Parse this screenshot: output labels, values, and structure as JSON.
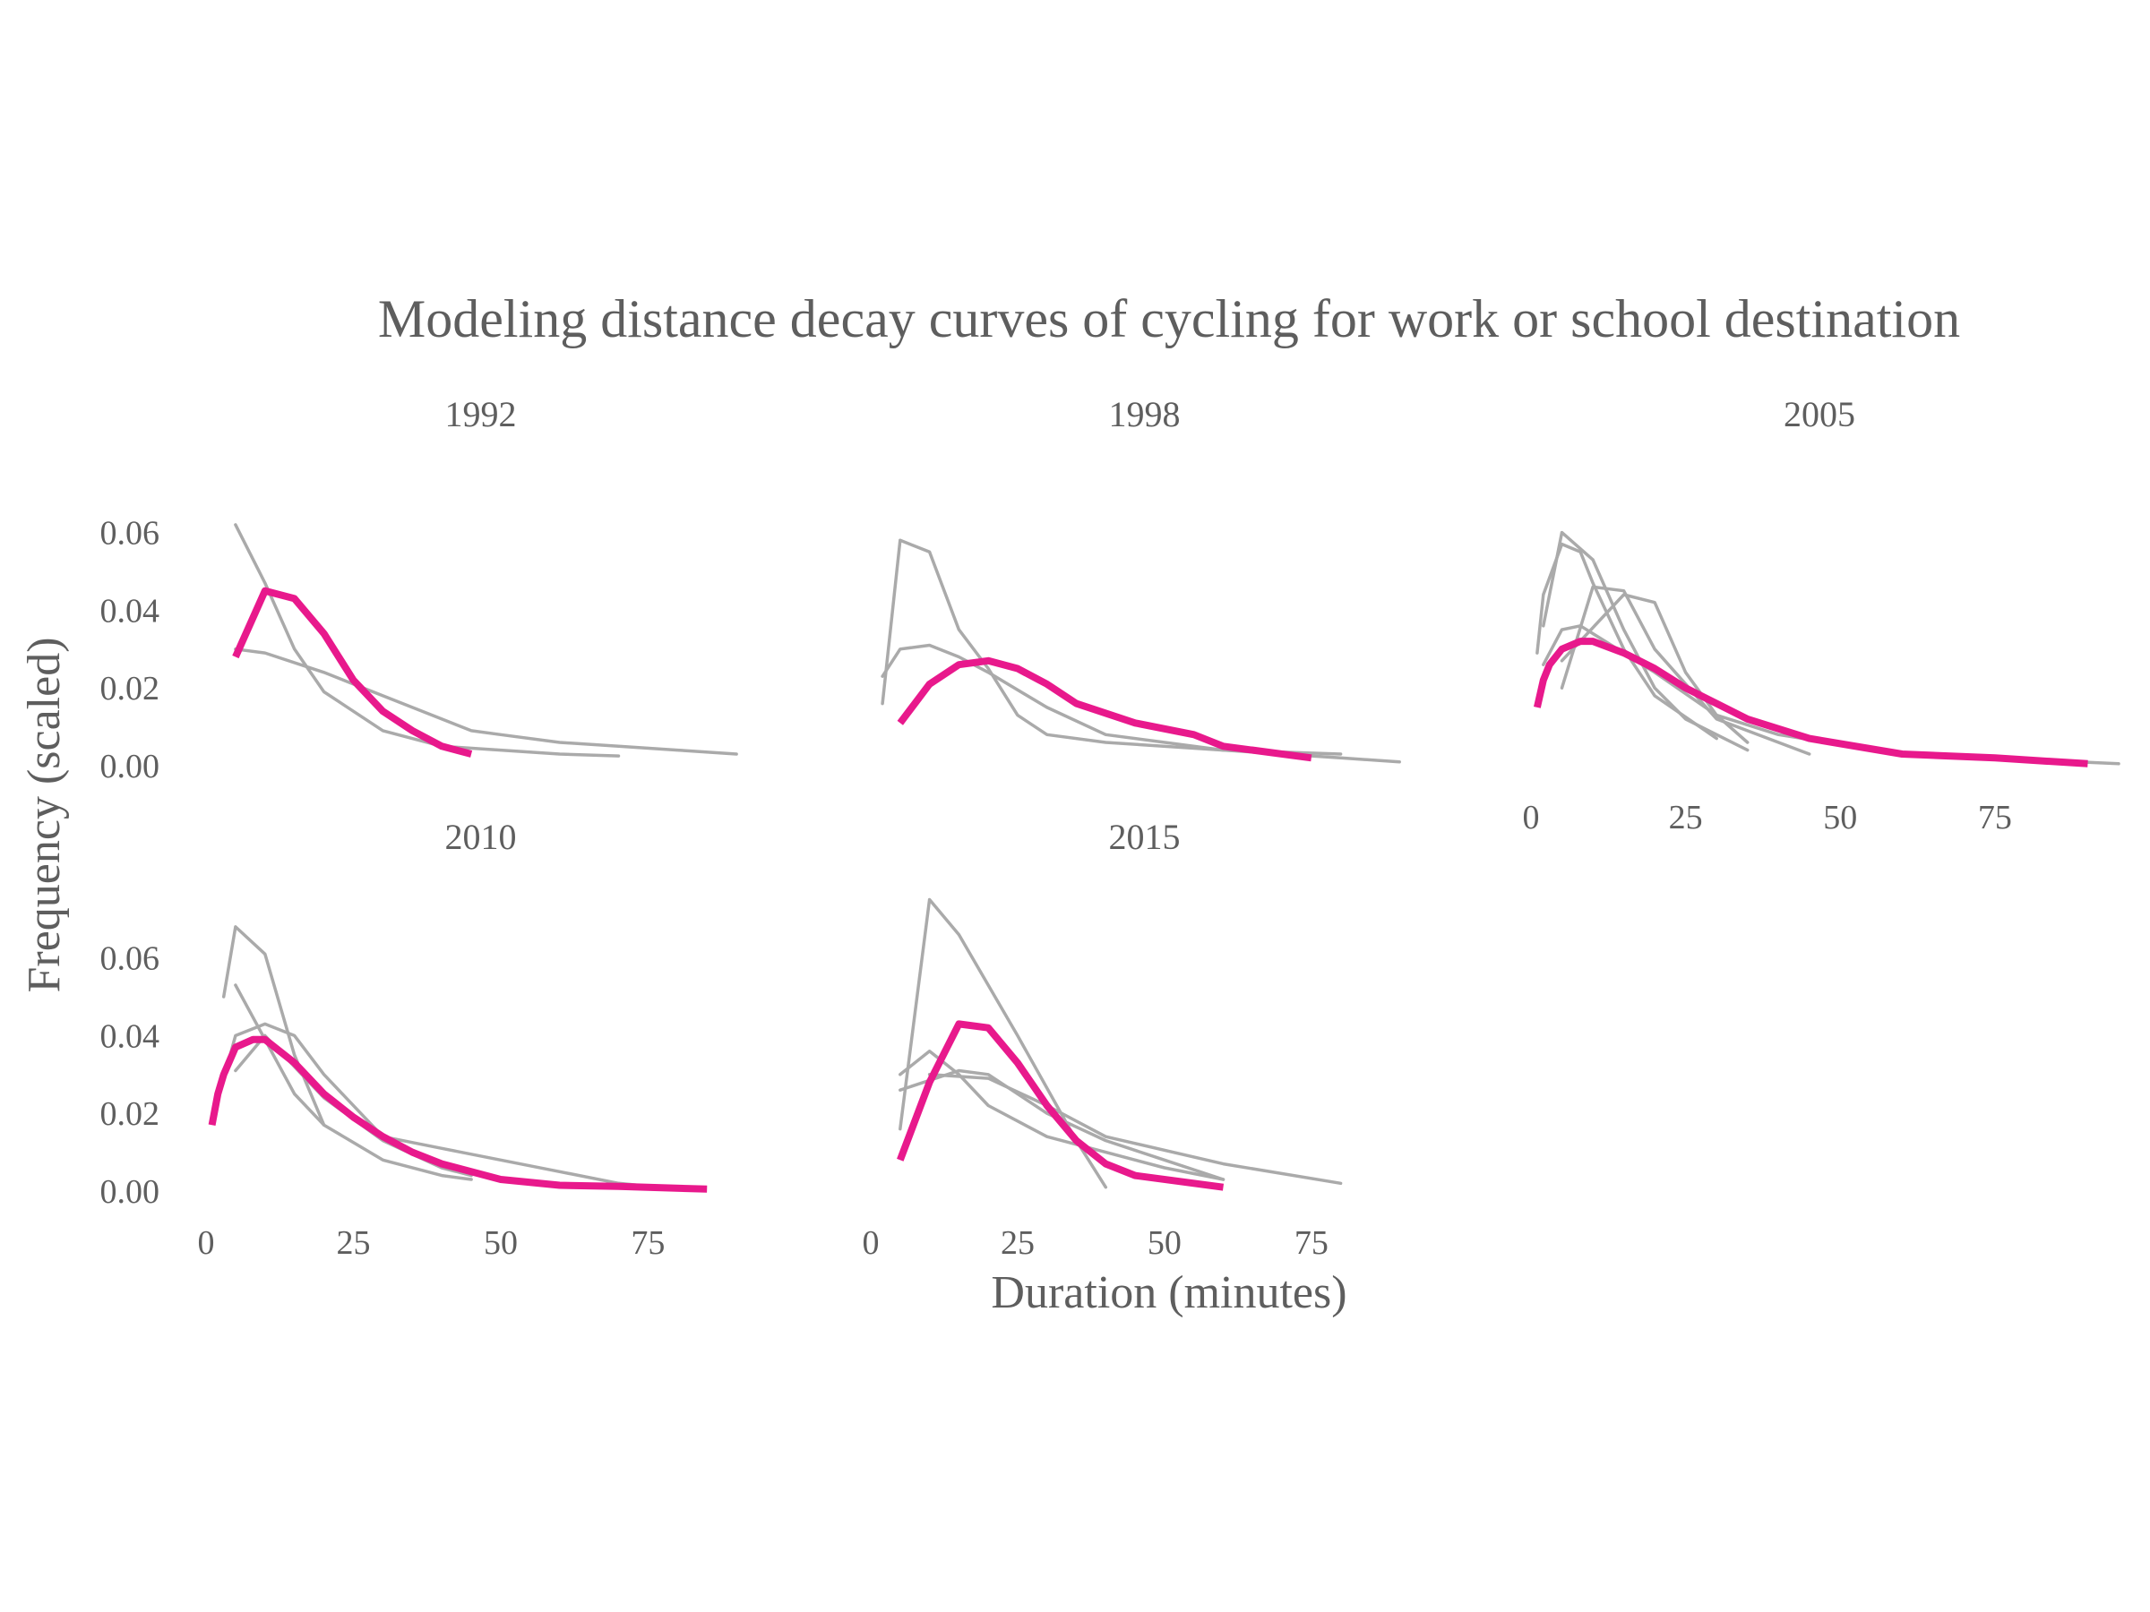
{
  "chart_data": {
    "type": "line",
    "title": "Modeling distance decay curves of cycling for work or school destination",
    "xlabel": "Duration (minutes)",
    "ylabel": "Frequency (scaled)",
    "xlim": [
      0,
      95
    ],
    "ylim": [
      0,
      0.065
    ],
    "x_ticks": [
      0,
      25,
      50,
      75
    ],
    "x_tick_labels": [
      "0",
      "25",
      "50",
      "75"
    ],
    "y_ticks": [
      0,
      0.02,
      0.04,
      0.06
    ],
    "y_tick_labels": [
      "0.00",
      "0.02",
      "0.04",
      "0.06"
    ],
    "grid": false,
    "legend": "none",
    "colors": {
      "model": "#e8198c",
      "observed": "#aaaaaa",
      "text": "#5e5e5e"
    },
    "panels": [
      {
        "label": "1992",
        "observed": [
          [
            [
              5,
              0.062
            ],
            [
              10,
              0.047
            ],
            [
              15,
              0.03
            ],
            [
              20,
              0.019
            ],
            [
              30,
              0.009
            ],
            [
              40,
              0.005
            ],
            [
              50,
              0.004
            ],
            [
              60,
              0.003
            ],
            [
              70,
              0.0025
            ]
          ],
          [
            [
              5,
              0.03
            ],
            [
              10,
              0.029
            ],
            [
              20,
              0.024
            ],
            [
              30,
              0.018
            ],
            [
              40,
              0.012
            ],
            [
              45,
              0.009
            ],
            [
              50,
              0.008
            ],
            [
              60,
              0.006
            ],
            [
              70,
              0.005
            ],
            [
              80,
              0.004
            ],
            [
              90,
              0.003
            ]
          ]
        ],
        "model": [
          [
            5,
            0.028
          ],
          [
            10,
            0.045
          ],
          [
            15,
            0.043
          ],
          [
            20,
            0.034
          ],
          [
            25,
            0.022
          ],
          [
            30,
            0.014
          ],
          [
            35,
            0.009
          ],
          [
            40,
            0.005
          ],
          [
            45,
            0.003
          ]
        ]
      },
      {
        "label": "1998",
        "observed": [
          [
            [
              2,
              0.016
            ],
            [
              5,
              0.058
            ],
            [
              10,
              0.055
            ],
            [
              15,
              0.035
            ],
            [
              20,
              0.025
            ],
            [
              25,
              0.013
            ],
            [
              30,
              0.008
            ],
            [
              40,
              0.006
            ],
            [
              60,
              0.004
            ],
            [
              80,
              0.003
            ]
          ],
          [
            [
              2,
              0.023
            ],
            [
              5,
              0.03
            ],
            [
              10,
              0.031
            ],
            [
              15,
              0.028
            ],
            [
              20,
              0.024
            ],
            [
              30,
              0.015
            ],
            [
              40,
              0.008
            ],
            [
              60,
              0.004
            ],
            [
              80,
              0.002
            ],
            [
              90,
              0.001
            ]
          ]
        ],
        "model": [
          [
            5,
            0.011
          ],
          [
            10,
            0.021
          ],
          [
            15,
            0.026
          ],
          [
            20,
            0.027
          ],
          [
            25,
            0.025
          ],
          [
            30,
            0.021
          ],
          [
            35,
            0.016
          ],
          [
            45,
            0.011
          ],
          [
            55,
            0.008
          ],
          [
            60,
            0.005
          ],
          [
            75,
            0.002
          ]
        ]
      },
      {
        "label": "2005",
        "observed": [
          [
            [
              1,
              0.029
            ],
            [
              2,
              0.044
            ],
            [
              5,
              0.057
            ],
            [
              8,
              0.055
            ],
            [
              10,
              0.047
            ],
            [
              15,
              0.03
            ],
            [
              20,
              0.018
            ],
            [
              30,
              0.007
            ]
          ],
          [
            [
              2,
              0.036
            ],
            [
              5,
              0.06
            ],
            [
              10,
              0.053
            ],
            [
              15,
              0.035
            ],
            [
              20,
              0.02
            ],
            [
              25,
              0.012
            ],
            [
              35,
              0.004
            ]
          ],
          [
            [
              5,
              0.02
            ],
            [
              10,
              0.046
            ],
            [
              15,
              0.045
            ],
            [
              20,
              0.03
            ],
            [
              30,
              0.012
            ],
            [
              45,
              0.003
            ]
          ],
          [
            [
              5,
              0.027
            ],
            [
              15,
              0.044
            ],
            [
              20,
              0.042
            ],
            [
              25,
              0.024
            ],
            [
              30,
              0.013
            ],
            [
              35,
              0.006
            ]
          ],
          [
            [
              2,
              0.026
            ],
            [
              5,
              0.035
            ],
            [
              8,
              0.036
            ],
            [
              12,
              0.032
            ],
            [
              20,
              0.024
            ],
            [
              30,
              0.013
            ],
            [
              40,
              0.008
            ],
            [
              60,
              0.003
            ],
            [
              95,
              0.0005
            ]
          ]
        ],
        "model": [
          [
            1,
            0.015
          ],
          [
            2,
            0.022
          ],
          [
            3,
            0.026
          ],
          [
            5,
            0.03
          ],
          [
            8,
            0.032
          ],
          [
            10,
            0.032
          ],
          [
            15,
            0.029
          ],
          [
            20,
            0.025
          ],
          [
            25,
            0.02
          ],
          [
            30,
            0.016
          ],
          [
            35,
            0.012
          ],
          [
            45,
            0.007
          ],
          [
            60,
            0.003
          ],
          [
            75,
            0.002
          ],
          [
            90,
            0.0005
          ]
        ]
      },
      {
        "label": "2010",
        "observed": [
          [
            [
              3,
              0.05
            ],
            [
              5,
              0.068
            ],
            [
              10,
              0.061
            ],
            [
              15,
              0.035
            ],
            [
              20,
              0.017
            ],
            [
              30,
              0.008
            ],
            [
              40,
              0.004
            ],
            [
              45,
              0.003
            ]
          ],
          [
            [
              5,
              0.053
            ],
            [
              10,
              0.039
            ],
            [
              15,
              0.025
            ],
            [
              20,
              0.017
            ]
          ],
          [
            [
              1,
              0.018
            ],
            [
              5,
              0.04
            ],
            [
              10,
              0.043
            ],
            [
              15,
              0.04
            ],
            [
              20,
              0.03
            ],
            [
              30,
              0.014
            ],
            [
              40,
              0.011
            ],
            [
              50,
              0.008
            ],
            [
              60,
              0.005
            ],
            [
              70,
              0.002
            ],
            [
              80,
              0.0005
            ]
          ],
          [
            [
              5,
              0.031
            ],
            [
              10,
              0.04
            ],
            [
              20,
              0.024
            ],
            [
              30,
              0.013
            ],
            [
              40,
              0.006
            ],
            [
              45,
              0.004
            ]
          ]
        ],
        "model": [
          [
            1,
            0.017
          ],
          [
            2,
            0.025
          ],
          [
            3,
            0.03
          ],
          [
            5,
            0.037
          ],
          [
            8,
            0.039
          ],
          [
            10,
            0.039
          ],
          [
            15,
            0.033
          ],
          [
            20,
            0.025
          ],
          [
            25,
            0.019
          ],
          [
            30,
            0.014
          ],
          [
            35,
            0.01
          ],
          [
            40,
            0.007
          ],
          [
            50,
            0.003
          ],
          [
            60,
            0.0015
          ],
          [
            70,
            0.0012
          ],
          [
            85,
            0.0005
          ]
        ]
      },
      {
        "label": "2015",
        "observed": [
          [
            [
              5,
              0.016
            ],
            [
              10,
              0.075
            ],
            [
              15,
              0.066
            ],
            [
              25,
              0.04
            ],
            [
              35,
              0.013
            ],
            [
              40,
              0.001
            ]
          ],
          [
            [
              5,
              0.03
            ],
            [
              10,
              0.036
            ],
            [
              15,
              0.03
            ],
            [
              20,
              0.022
            ],
            [
              30,
              0.014
            ],
            [
              40,
              0.01
            ],
            [
              50,
              0.006
            ],
            [
              60,
              0.003
            ]
          ],
          [
            [
              5,
              0.026
            ],
            [
              15,
              0.031
            ],
            [
              20,
              0.03
            ],
            [
              30,
              0.02
            ],
            [
              40,
              0.013
            ],
            [
              50,
              0.008
            ],
            [
              60,
              0.003
            ]
          ],
          [
            [
              10,
              0.03
            ],
            [
              20,
              0.029
            ],
            [
              30,
              0.022
            ],
            [
              40,
              0.014
            ],
            [
              60,
              0.007
            ],
            [
              80,
              0.002
            ]
          ]
        ],
        "model": [
          [
            5,
            0.008
          ],
          [
            10,
            0.028
          ],
          [
            15,
            0.043
          ],
          [
            20,
            0.042
          ],
          [
            25,
            0.033
          ],
          [
            30,
            0.022
          ],
          [
            35,
            0.013
          ],
          [
            40,
            0.007
          ],
          [
            45,
            0.004
          ],
          [
            60,
            0.001
          ]
        ]
      }
    ]
  }
}
